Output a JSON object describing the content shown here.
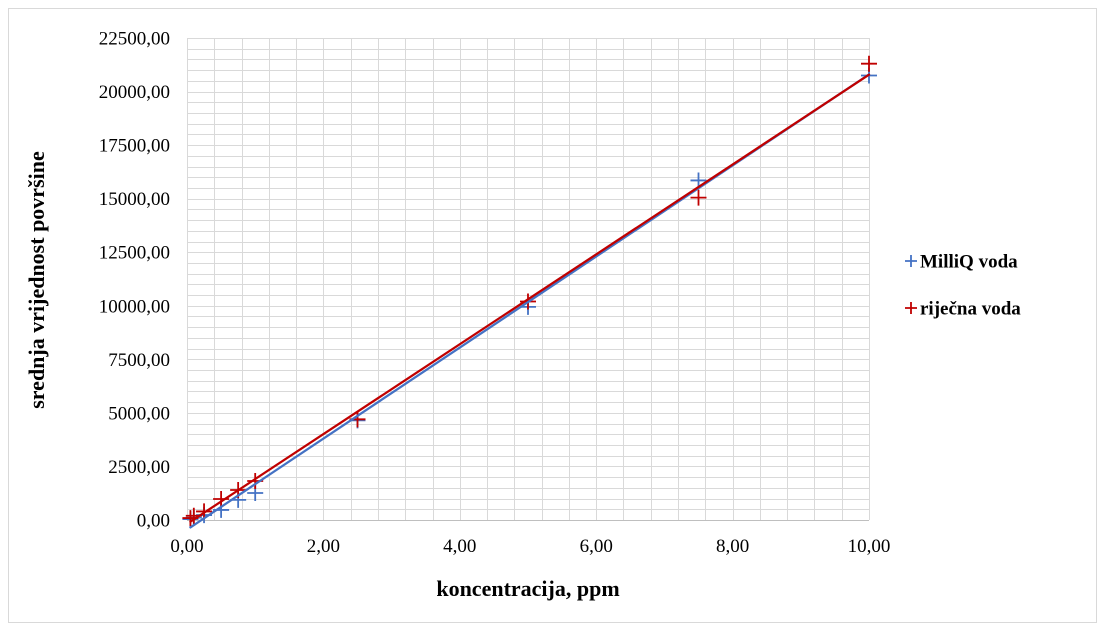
{
  "chart_data": {
    "type": "scatter",
    "xlabel": "koncentracija, ppm",
    "ylabel": "srednja vrijednost površine",
    "xlim": [
      0,
      10
    ],
    "ylim": [
      0,
      22500
    ],
    "x_ticks": [
      "0,00",
      "2,00",
      "4,00",
      "6,00",
      "8,00",
      "10,00"
    ],
    "y_ticks": [
      "0,00",
      "2500,00",
      "5000,00",
      "7500,00",
      "10000,00",
      "12500,00",
      "15000,00",
      "17500,00",
      "20000,00",
      "22500,00"
    ],
    "grid": true,
    "legend_position": "right",
    "series": [
      {
        "name": "MilliQ voda",
        "color": "#4472C4",
        "marker": "plus",
        "trendline": "linear",
        "x": [
          0.05,
          0.1,
          0.25,
          0.5,
          0.75,
          1,
          2.5,
          5,
          7.5,
          10
        ],
        "y": [
          40,
          110,
          230,
          470,
          940,
          1260,
          4650,
          9950,
          15850,
          20750
        ]
      },
      {
        "name": "riječna voda",
        "color": "#C00000",
        "marker": "plus",
        "trendline": "linear",
        "x": [
          0.05,
          0.1,
          0.25,
          0.5,
          0.75,
          1,
          2.5,
          5,
          7.5,
          10
        ],
        "y": [
          90,
          200,
          400,
          980,
          1400,
          1820,
          4700,
          10200,
          15050,
          21300
        ]
      }
    ]
  }
}
